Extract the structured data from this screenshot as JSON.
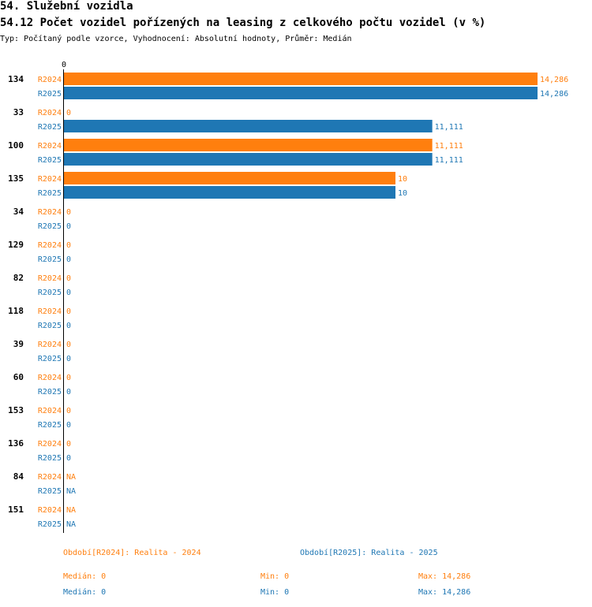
{
  "header": {
    "title": "54. Služební vozidla",
    "subtitle": "54.12 Počet vozidel pořízených na leasing z celkového počtu vozidel (v %)",
    "meta": "Typ: Počítaný podle vzorce, Vyhodnocení: Absolutní hodnoty, Průměr: Medián"
  },
  "colors": {
    "r2024": "#ff7f0e",
    "r2025": "#1f77b4",
    "axis": "#000000"
  },
  "chart_data": {
    "type": "bar",
    "orientation": "horizontal",
    "axis_zero_label": "0",
    "xlim": [
      0,
      14.286
    ],
    "categories": [
      "134",
      "33",
      "100",
      "135",
      "34",
      "129",
      "82",
      "118",
      "39",
      "60",
      "153",
      "136",
      "84",
      "151"
    ],
    "series": [
      {
        "name": "R2024",
        "values": [
          14.286,
          0,
          11.111,
          10,
          0,
          0,
          0,
          0,
          0,
          0,
          0,
          0,
          null,
          null
        ],
        "labels": [
          "14,286",
          "0",
          "11,111",
          "10",
          "0",
          "0",
          "0",
          "0",
          "0",
          "0",
          "0",
          "0",
          "NA",
          "NA"
        ]
      },
      {
        "name": "R2025",
        "values": [
          14.286,
          11.111,
          11.111,
          10,
          0,
          0,
          0,
          0,
          0,
          0,
          0,
          0,
          null,
          null
        ],
        "labels": [
          "14,286",
          "11,111",
          "11,111",
          "10",
          "0",
          "0",
          "0",
          "0",
          "0",
          "0",
          "0",
          "0",
          "NA",
          "NA"
        ]
      }
    ]
  },
  "legend": {
    "r2024": "Období[R2024]: Realita - 2024",
    "r2025": "Období[R2025]: Realita - 2025"
  },
  "stats": {
    "r2024": {
      "median": "Medián: 0",
      "min": "Min: 0",
      "max": "Max: 14,286"
    },
    "r2025": {
      "median": "Medián: 0",
      "min": "Min: 0",
      "max": "Max: 14,286"
    }
  }
}
